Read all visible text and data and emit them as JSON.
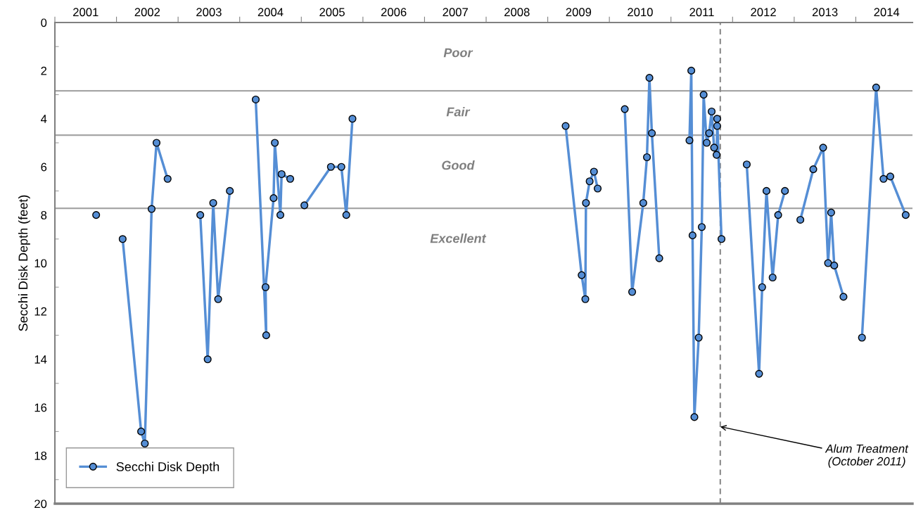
{
  "chart_data": {
    "type": "line",
    "ylabel": "Secchi Disk Depth (feet)",
    "xlim": [
      2001,
      2014.92
    ],
    "ylim": [
      20,
      0
    ],
    "xticks": [
      {
        "value": 2001,
        "label": null
      },
      {
        "value": 2001.5,
        "label": "2001"
      },
      {
        "value": 2002,
        "label": null
      },
      {
        "value": 2002.5,
        "label": "2002"
      },
      {
        "value": 2003,
        "label": null
      },
      {
        "value": 2003.5,
        "label": "2003"
      },
      {
        "value": 2004,
        "label": null
      },
      {
        "value": 2004.5,
        "label": "2004"
      },
      {
        "value": 2005,
        "label": null
      },
      {
        "value": 2005.5,
        "label": "2005"
      },
      {
        "value": 2006,
        "label": null
      },
      {
        "value": 2006.5,
        "label": "2006"
      },
      {
        "value": 2007,
        "label": null
      },
      {
        "value": 2007.5,
        "label": "2007"
      },
      {
        "value": 2008,
        "label": null
      },
      {
        "value": 2008.5,
        "label": "2008"
      },
      {
        "value": 2009,
        "label": null
      },
      {
        "value": 2009.5,
        "label": "2009"
      },
      {
        "value": 2010,
        "label": null
      },
      {
        "value": 2010.5,
        "label": "2010"
      },
      {
        "value": 2011,
        "label": null
      },
      {
        "value": 2011.5,
        "label": "2011"
      },
      {
        "value": 2012,
        "label": null
      },
      {
        "value": 2012.5,
        "label": "2012"
      },
      {
        "value": 2013,
        "label": null
      },
      {
        "value": 2013.5,
        "label": "2013"
      },
      {
        "value": 2014,
        "label": null
      },
      {
        "value": 2014.5,
        "label": "2014"
      }
    ],
    "yticks": [
      0,
      {
        "value": 1,
        "label": null
      },
      2,
      {
        "value": 3,
        "label": null
      },
      4,
      {
        "value": 5,
        "label": null
      },
      6,
      {
        "value": 7,
        "label": null
      },
      8,
      {
        "value": 9,
        "label": null
      },
      10,
      {
        "value": 11,
        "label": null
      },
      12,
      {
        "value": 13,
        "label": null
      },
      14,
      {
        "value": 15,
        "label": null
      },
      16,
      {
        "value": 17,
        "label": null
      },
      18,
      {
        "value": 19,
        "label": null
      },
      20
    ],
    "series": [
      {
        "name": "Secchi Disk Depth",
        "color": "#558ed5",
        "x": [
          2001.67,
          2001.9,
          2002.1,
          2002.4,
          2002.46,
          2002.57,
          2002.65,
          2002.83,
          2003.1,
          2003.36,
          2003.48,
          2003.57,
          2003.65,
          2003.84,
          2004.0,
          2004.26,
          2004.43,
          2004.42,
          2004.55,
          2004.57,
          2004.66,
          2004.68,
          2004.82,
          2004.9,
          2005.05,
          2005.48,
          2005.65,
          2005.73,
          2005.83,
          2007.5,
          2009.29,
          2009.55,
          2009.61,
          2009.62,
          2009.68,
          2009.75,
          2009.81,
          2010.0,
          2010.25,
          2010.37,
          2010.55,
          2010.61,
          2010.65,
          2010.69,
          2010.81,
          2011.0,
          2011.3,
          2011.33,
          2011.35,
          2011.38,
          2011.45,
          2011.5,
          2011.53,
          2011.58,
          2011.62,
          2011.66,
          2011.7,
          2011.74,
          2011.75,
          2011.75,
          2011.82,
          2012.0,
          2012.23,
          2012.43,
          2012.48,
          2012.55,
          2012.65,
          2012.74,
          2012.85,
          2013.0,
          2013.1,
          2013.31,
          2013.47,
          2013.55,
          2013.6,
          2013.65,
          2013.8,
          2014.0,
          2014.1,
          2014.33,
          2014.45,
          2014.56,
          2014.81
        ],
        "values": [
          8.0,
          null,
          9.0,
          17.0,
          17.5,
          7.75,
          5.0,
          6.5,
          null,
          8.0,
          14.0,
          7.5,
          11.5,
          7.0,
          null,
          3.2,
          13.0,
          11.0,
          7.3,
          5.0,
          8.0,
          6.3,
          6.5,
          null,
          7.6,
          6.0,
          6.0,
          8.0,
          4.0,
          null,
          4.3,
          10.5,
          11.5,
          7.5,
          6.6,
          6.2,
          6.9,
          null,
          3.6,
          11.2,
          7.5,
          5.6,
          2.3,
          4.6,
          9.8,
          null,
          4.9,
          2.0,
          8.85,
          16.4,
          13.1,
          8.5,
          3.0,
          5.0,
          4.6,
          3.7,
          5.2,
          5.5,
          4.3,
          4.0,
          9.0,
          null,
          5.9,
          14.6,
          11.0,
          7.0,
          10.6,
          8.0,
          7.0,
          null,
          8.2,
          6.1,
          5.2,
          10.0,
          7.9,
          10.1,
          11.4,
          null,
          13.1,
          2.7,
          6.5,
          6.4,
          8.0
        ]
      }
    ],
    "marker": "circle",
    "line_style": "solid",
    "legend": "bottom left",
    "grid": false,
    "ref_lines": [
      {
        "axis": "y",
        "value": 2.84,
        "color": "#a6a6a6",
        "line_style": "solid"
      },
      {
        "axis": "y",
        "value": 4.68,
        "color": "#a6a6a6",
        "line_style": "solid"
      },
      {
        "axis": "y",
        "value": 7.72,
        "color": "#a6a6a6",
        "line_style": "solid"
      },
      {
        "axis": "x",
        "value": 2011.8,
        "label": "Alum Treatment\n(October 2011)",
        "color": "#808080",
        "line_style": "dashed"
      }
    ],
    "annotations": [
      "Poor",
      "Fair",
      "Good",
      "Excellent"
    ]
  }
}
